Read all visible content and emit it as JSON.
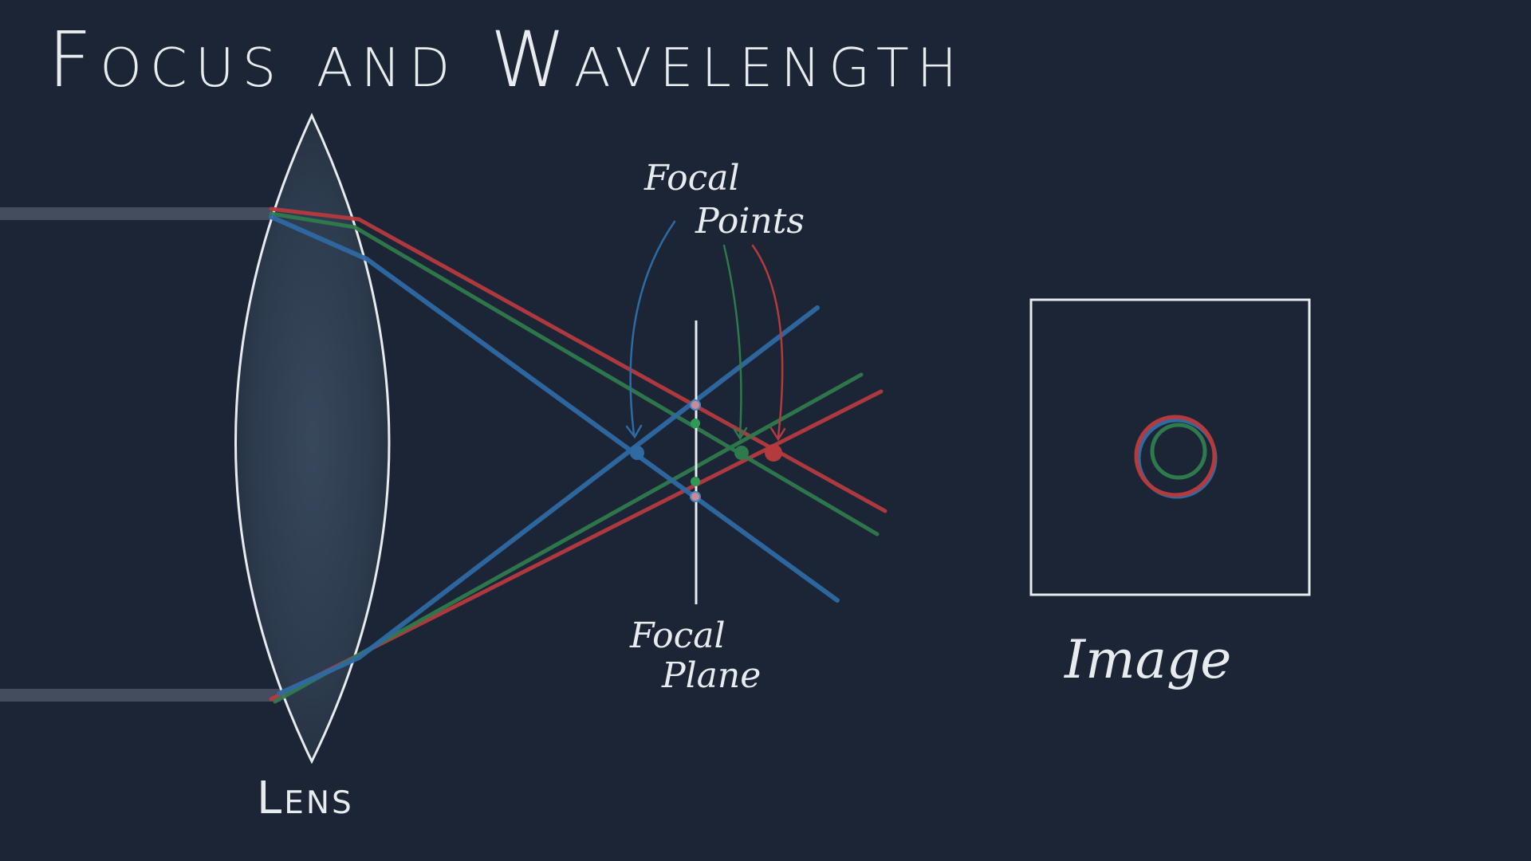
{
  "title": "Focus and Wavelength",
  "labels": {
    "lens": "Lens",
    "focal_points_line1": "Focal",
    "focal_points_line2": "Points",
    "focal_plane_line1": "Focal",
    "focal_plane_line2": "Plane",
    "image": "Image"
  },
  "colors": {
    "background": "#1b2535",
    "chalk": "#e9ecef",
    "red": "#b53a3e",
    "green": "#2f7a4c",
    "blue": "#2f6aa3",
    "incoming_ray": "#4a5564"
  }
}
